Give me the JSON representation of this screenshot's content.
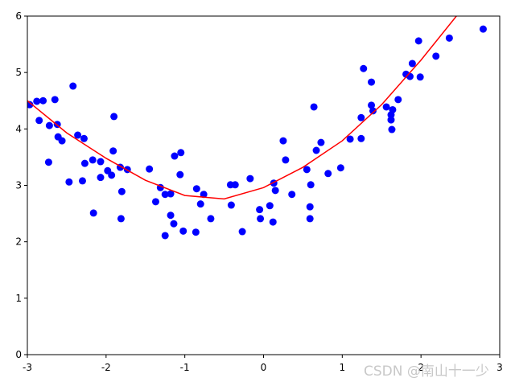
{
  "chart_data": {
    "type": "scatter",
    "watermark": "CSDN @南山十一少",
    "xlim": [
      -3,
      3
    ],
    "xticks": [
      -3,
      -2,
      -1,
      0,
      1,
      2,
      3
    ],
    "ylim": [
      0,
      6
    ],
    "yticks": [
      0,
      1,
      2,
      3,
      4,
      5,
      6
    ],
    "grid": false,
    "series": [
      {
        "color": "#0000ff",
        "x": [
          -2.97,
          -2.88,
          -2.8,
          -2.65,
          -2.85,
          -2.72,
          -2.62,
          -2.42,
          -2.73,
          -2.61,
          -2.56,
          -2.47,
          -2.36,
          -2.28,
          -2.3,
          -2.27,
          -2.17,
          -2.16,
          -2.07,
          -2.07,
          -1.98,
          -1.93,
          -1.9,
          -1.91,
          -1.82,
          -1.8,
          -1.81,
          -1.73,
          -1.45,
          -1.37,
          -1.31,
          -1.25,
          -1.18,
          -1.25,
          -1.18,
          -1.14,
          -1.13,
          -1.05,
          -1.06,
          -1.02,
          -0.86,
          -0.85,
          -0.8,
          -0.76,
          -0.67,
          -0.42,
          -0.36,
          -0.41,
          -0.27,
          -0.17,
          -0.05,
          -0.04,
          0.08,
          0.12,
          0.13,
          0.15,
          0.25,
          0.28,
          0.36,
          0.55,
          0.6,
          0.59,
          0.59,
          0.64,
          0.67,
          0.73,
          0.82,
          0.98,
          1.1,
          1.24,
          1.24,
          1.27,
          1.37,
          1.37,
          1.39,
          1.56,
          1.62,
          1.62,
          1.64,
          1.63,
          1.71,
          1.81,
          1.86,
          1.89,
          1.97,
          1.99,
          2.19,
          2.36,
          2.79
        ],
        "values": [
          4.43,
          4.49,
          4.5,
          4.52,
          4.15,
          4.06,
          4.08,
          4.76,
          3.41,
          3.86,
          3.79,
          3.06,
          3.89,
          3.83,
          3.08,
          3.39,
          3.45,
          2.51,
          3.42,
          3.14,
          3.26,
          3.18,
          4.22,
          3.61,
          3.32,
          2.89,
          2.41,
          3.28,
          3.29,
          2.71,
          2.96,
          2.84,
          2.85,
          2.11,
          2.47,
          2.32,
          3.52,
          3.58,
          3.19,
          2.19,
          2.17,
          2.94,
          2.67,
          2.84,
          2.41,
          3.01,
          3.01,
          2.65,
          2.18,
          3.12,
          2.57,
          2.41,
          2.64,
          2.35,
          3.04,
          2.91,
          3.79,
          3.45,
          2.84,
          3.28,
          3.01,
          2.62,
          2.41,
          4.39,
          3.62,
          3.76,
          3.21,
          3.31,
          3.82,
          4.2,
          3.83,
          5.07,
          4.83,
          4.42,
          4.32,
          4.39,
          4.25,
          4.16,
          4.34,
          3.99,
          4.52,
          4.97,
          4.93,
          5.16,
          5.56,
          4.92,
          5.29,
          5.61,
          5.77
        ]
      },
      {
        "color": "#ff0000",
        "line": true,
        "x": [
          -3,
          -2.5,
          -2,
          -1.5,
          -1,
          -0.5,
          0,
          0.5,
          1,
          1.5,
          2,
          2.45
        ],
        "values": [
          4.5,
          3.93,
          3.48,
          3.09,
          2.82,
          2.76,
          2.96,
          3.32,
          3.79,
          4.43,
          5.22,
          6.0
        ]
      }
    ]
  }
}
